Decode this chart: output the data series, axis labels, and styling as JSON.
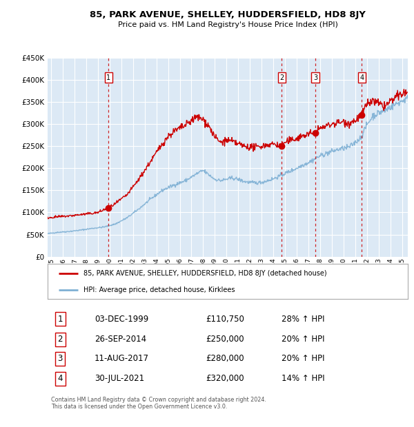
{
  "title": "85, PARK AVENUE, SHELLEY, HUDDERSFIELD, HD8 8JY",
  "subtitle": "Price paid vs. HM Land Registry's House Price Index (HPI)",
  "ylim": [
    0,
    450000
  ],
  "yticks": [
    0,
    50000,
    100000,
    150000,
    200000,
    250000,
    300000,
    350000,
    400000,
    450000
  ],
  "ytick_labels": [
    "£0",
    "£50K",
    "£100K",
    "£150K",
    "£200K",
    "£250K",
    "£300K",
    "£350K",
    "£400K",
    "£450K"
  ],
  "xlim_start": 1994.7,
  "xlim_end": 2025.5,
  "plot_bg_color": "#dce9f5",
  "grid_color": "#ffffff",
  "sale_color": "#cc0000",
  "hpi_color": "#7eb0d4",
  "vline_color": "#cc0000",
  "sales": [
    {
      "date_num": 1999.92,
      "price": 110750,
      "label": "1",
      "date_str": "03-DEC-1999",
      "price_str": "£110,750",
      "hpi_str": "28% ↑ HPI"
    },
    {
      "date_num": 2014.73,
      "price": 250000,
      "label": "2",
      "date_str": "26-SEP-2014",
      "price_str": "£250,000",
      "hpi_str": "20% ↑ HPI"
    },
    {
      "date_num": 2017.61,
      "price": 280000,
      "label": "3",
      "date_str": "11-AUG-2017",
      "price_str": "£280,000",
      "hpi_str": "20% ↑ HPI"
    },
    {
      "date_num": 2021.57,
      "price": 320000,
      "label": "4",
      "date_str": "30-JUL-2021",
      "price_str": "£320,000",
      "hpi_str": "14% ↑ HPI"
    }
  ],
  "legend_line1": "85, PARK AVENUE, SHELLEY, HUDDERSFIELD, HD8 8JY (detached house)",
  "legend_line2": "HPI: Average price, detached house, Kirklees",
  "footer": "Contains HM Land Registry data © Crown copyright and database right 2024.\nThis data is licensed under the Open Government Licence v3.0.",
  "xtick_years": [
    1995,
    1996,
    1997,
    1998,
    1999,
    2000,
    2001,
    2002,
    2003,
    2004,
    2005,
    2006,
    2007,
    2008,
    2009,
    2010,
    2011,
    2012,
    2013,
    2014,
    2015,
    2016,
    2017,
    2018,
    2019,
    2020,
    2021,
    2022,
    2023,
    2024,
    2025
  ],
  "hpi_anchors": [
    [
      1994.7,
      52000
    ],
    [
      1995.5,
      55000
    ],
    [
      1996.5,
      57000
    ],
    [
      1997.5,
      60000
    ],
    [
      1998.5,
      64000
    ],
    [
      1999.5,
      67000
    ],
    [
      2000.5,
      74000
    ],
    [
      2001.5,
      88000
    ],
    [
      2002.5,
      108000
    ],
    [
      2003.5,
      130000
    ],
    [
      2004.5,
      150000
    ],
    [
      2005.5,
      162000
    ],
    [
      2006.5,
      172000
    ],
    [
      2007.5,
      188000
    ],
    [
      2008.0,
      195000
    ],
    [
      2008.5,
      185000
    ],
    [
      2009.0,
      175000
    ],
    [
      2009.5,
      172000
    ],
    [
      2010.0,
      175000
    ],
    [
      2010.5,
      178000
    ],
    [
      2011.0,
      175000
    ],
    [
      2011.5,
      170000
    ],
    [
      2012.0,
      168000
    ],
    [
      2012.5,
      167000
    ],
    [
      2013.0,
      168000
    ],
    [
      2013.5,
      172000
    ],
    [
      2014.0,
      176000
    ],
    [
      2014.5,
      182000
    ],
    [
      2015.0,
      188000
    ],
    [
      2015.5,
      194000
    ],
    [
      2016.0,
      200000
    ],
    [
      2016.5,
      207000
    ],
    [
      2017.0,
      213000
    ],
    [
      2017.5,
      220000
    ],
    [
      2018.0,
      228000
    ],
    [
      2018.5,
      233000
    ],
    [
      2019.0,
      238000
    ],
    [
      2019.5,
      242000
    ],
    [
      2020.0,
      245000
    ],
    [
      2020.5,
      248000
    ],
    [
      2021.0,
      258000
    ],
    [
      2021.5,
      270000
    ],
    [
      2022.0,
      298000
    ],
    [
      2022.5,
      318000
    ],
    [
      2023.0,
      325000
    ],
    [
      2023.5,
      330000
    ],
    [
      2024.0,
      338000
    ],
    [
      2024.5,
      345000
    ],
    [
      2025.0,
      352000
    ],
    [
      2025.5,
      358000
    ]
  ],
  "price_anchors": [
    [
      1994.7,
      88000
    ],
    [
      1995.5,
      90000
    ],
    [
      1996.5,
      92000
    ],
    [
      1997.5,
      95000
    ],
    [
      1998.5,
      98000
    ],
    [
      1999.0,
      100000
    ],
    [
      1999.92,
      110750
    ],
    [
      2000.5,
      120000
    ],
    [
      2001.5,
      140000
    ],
    [
      2002.5,
      175000
    ],
    [
      2003.5,
      215000
    ],
    [
      2004.5,
      255000
    ],
    [
      2005.0,
      272000
    ],
    [
      2005.5,
      283000
    ],
    [
      2006.0,
      290000
    ],
    [
      2006.5,
      297000
    ],
    [
      2007.0,
      308000
    ],
    [
      2007.5,
      316000
    ],
    [
      2008.0,
      310000
    ],
    [
      2008.5,
      295000
    ],
    [
      2009.0,
      270000
    ],
    [
      2009.5,
      258000
    ],
    [
      2010.0,
      263000
    ],
    [
      2010.5,
      260000
    ],
    [
      2011.0,
      255000
    ],
    [
      2011.5,
      250000
    ],
    [
      2012.0,
      248000
    ],
    [
      2012.5,
      247000
    ],
    [
      2013.0,
      250000
    ],
    [
      2013.5,
      253000
    ],
    [
      2014.0,
      255000
    ],
    [
      2014.73,
      250000
    ],
    [
      2015.0,
      258000
    ],
    [
      2015.5,
      263000
    ],
    [
      2016.0,
      268000
    ],
    [
      2016.5,
      273000
    ],
    [
      2017.0,
      277000
    ],
    [
      2017.61,
      280000
    ],
    [
      2018.0,
      290000
    ],
    [
      2018.5,
      295000
    ],
    [
      2019.0,
      300000
    ],
    [
      2019.5,
      303000
    ],
    [
      2020.0,
      305000
    ],
    [
      2020.5,
      302000
    ],
    [
      2021.0,
      308000
    ],
    [
      2021.57,
      320000
    ],
    [
      2022.0,
      345000
    ],
    [
      2022.5,
      352000
    ],
    [
      2023.0,
      345000
    ],
    [
      2023.5,
      340000
    ],
    [
      2024.0,
      350000
    ],
    [
      2024.5,
      360000
    ],
    [
      2025.0,
      368000
    ],
    [
      2025.5,
      372000
    ]
  ]
}
